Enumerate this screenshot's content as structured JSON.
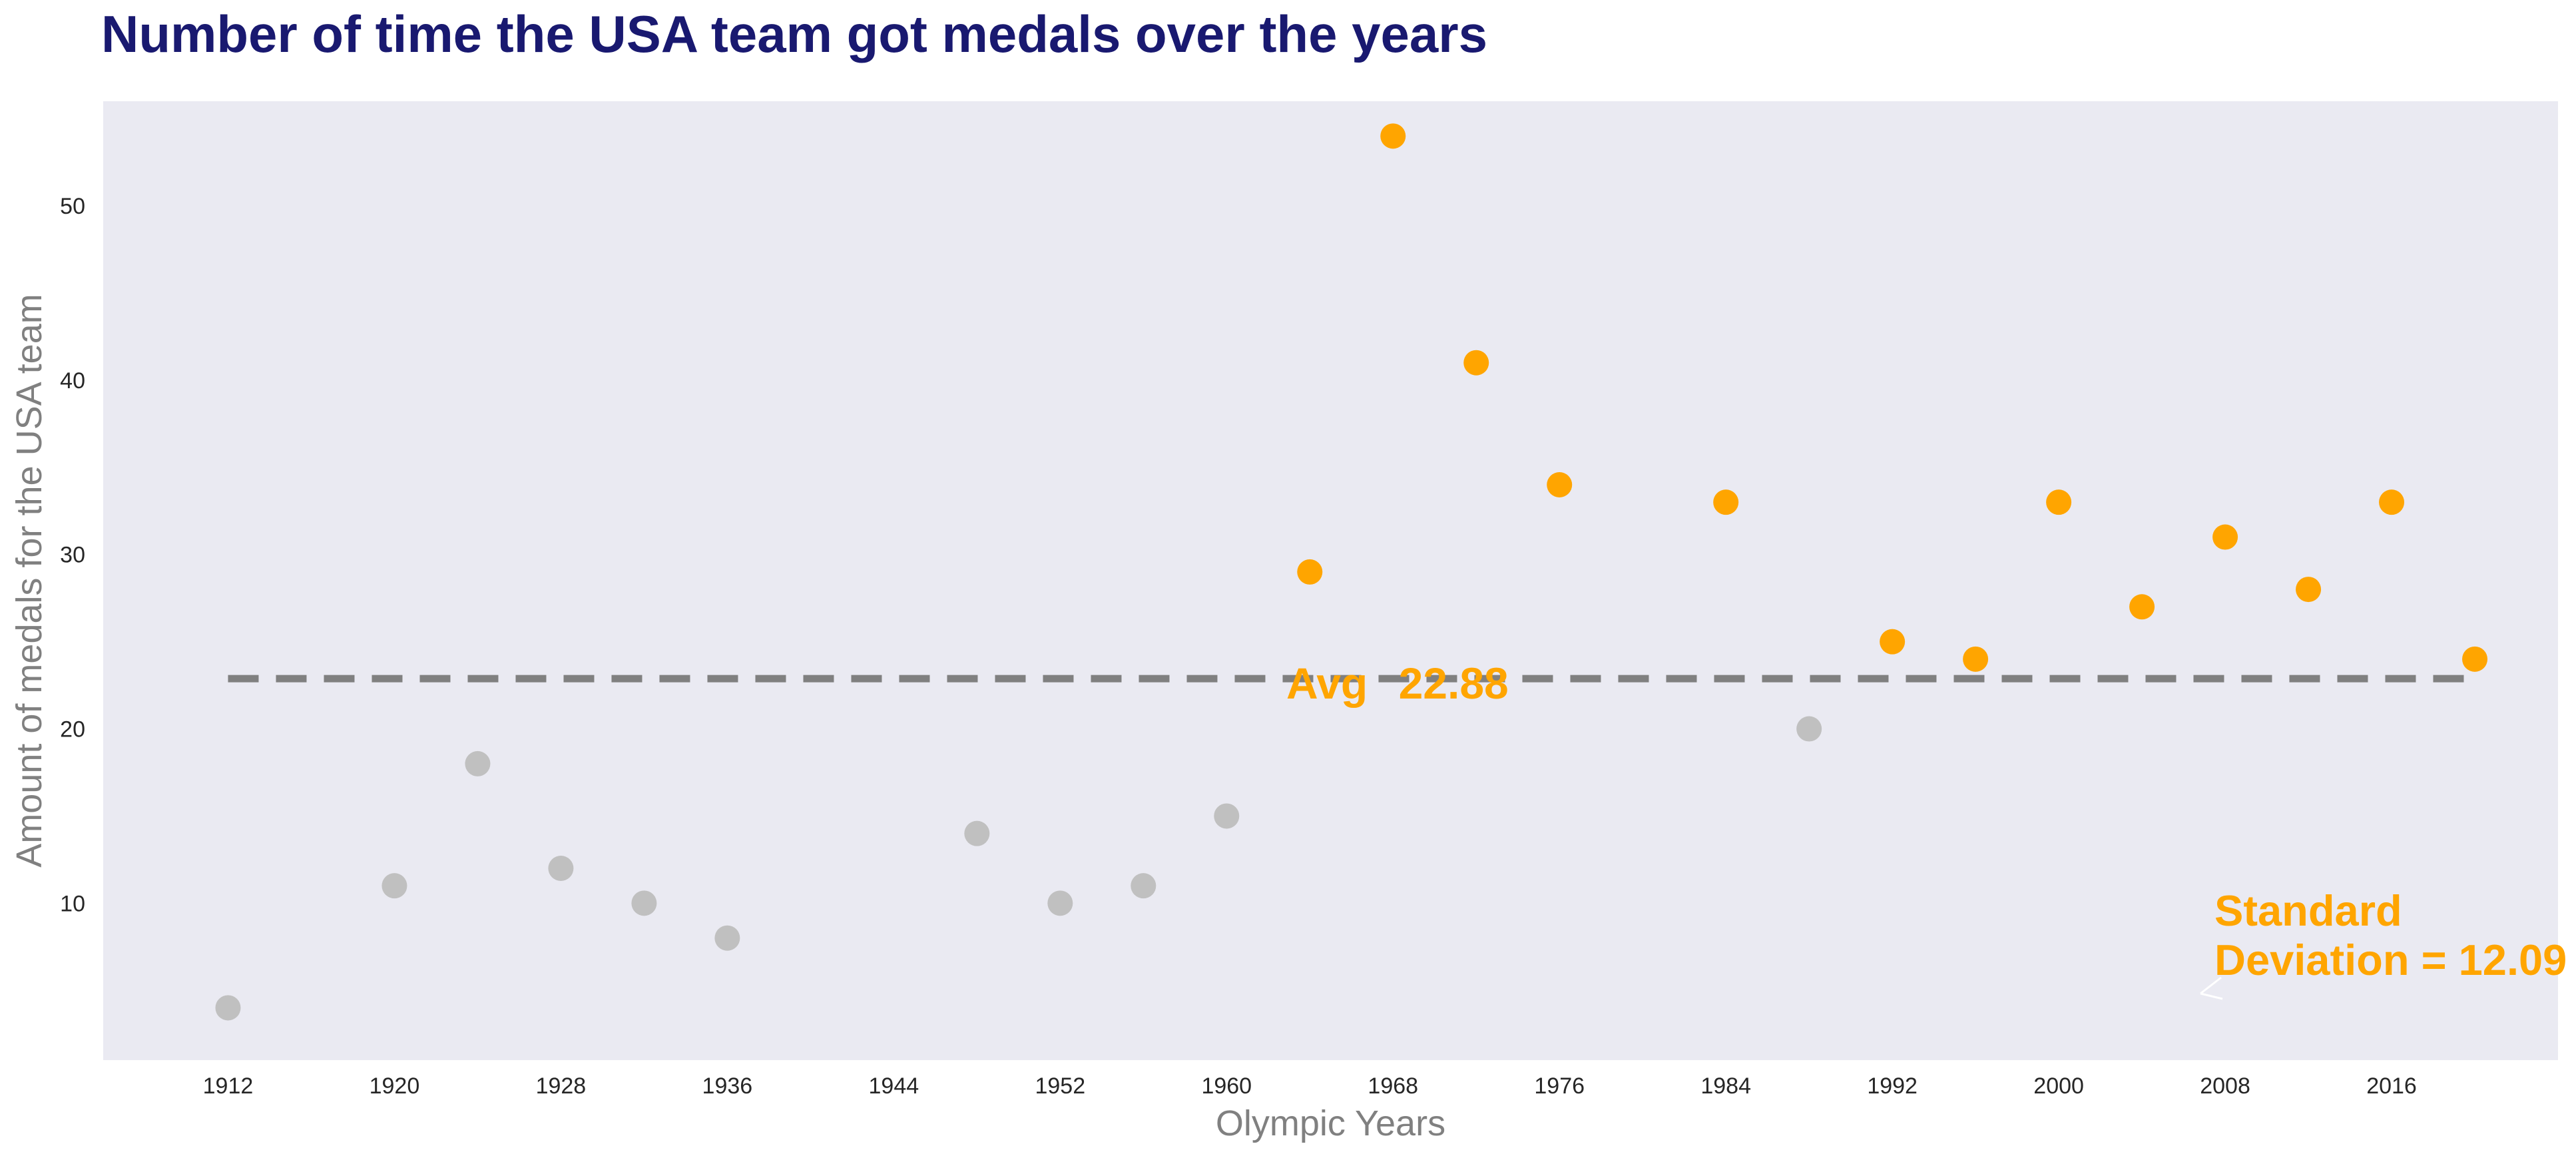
{
  "chart_data": {
    "type": "scatter",
    "title": "Number of time the USA team got medals over the years",
    "xlabel": "Olympic Years",
    "ylabel": "Amount of medals for the USA team",
    "xlim": [
      1906,
      2024
    ],
    "ylim": [
      1,
      56
    ],
    "xticks": [
      1912,
      1920,
      1928,
      1936,
      1944,
      1952,
      1960,
      1968,
      1976,
      1984,
      1992,
      2000,
      2008,
      2016
    ],
    "yticks": [
      10,
      20,
      30,
      40,
      50
    ],
    "grid": false,
    "points": [
      {
        "x": 1912,
        "y": 4
      },
      {
        "x": 1920,
        "y": 11
      },
      {
        "x": 1924,
        "y": 18
      },
      {
        "x": 1928,
        "y": 12
      },
      {
        "x": 1932,
        "y": 10
      },
      {
        "x": 1936,
        "y": 8
      },
      {
        "x": 1948,
        "y": 14
      },
      {
        "x": 1952,
        "y": 10
      },
      {
        "x": 1956,
        "y": 11
      },
      {
        "x": 1960,
        "y": 15
      },
      {
        "x": 1964,
        "y": 29
      },
      {
        "x": 1968,
        "y": 54
      },
      {
        "x": 1972,
        "y": 41
      },
      {
        "x": 1976,
        "y": 34
      },
      {
        "x": 1984,
        "y": 33
      },
      {
        "x": 1988,
        "y": 20
      },
      {
        "x": 1992,
        "y": 25
      },
      {
        "x": 1996,
        "y": 24
      },
      {
        "x": 2000,
        "y": 33
      },
      {
        "x": 2004,
        "y": 27
      },
      {
        "x": 2008,
        "y": 31
      },
      {
        "x": 2012,
        "y": 28
      },
      {
        "x": 2016,
        "y": 33
      },
      {
        "x": 2020,
        "y": 24
      }
    ],
    "average": {
      "value": 22.88,
      "label": "Avg",
      "value_text": "22.88",
      "x_start": 1912,
      "x_end": 2020
    },
    "std_annotation": {
      "line1": "Standard",
      "line2": " Deviation = 12.09"
    },
    "colors": {
      "background": "#eaeaf2",
      "above_average": "#ffa500",
      "below_average": "#c0c0c0",
      "avg_line": "#808080",
      "title": "#191970",
      "axis_label": "#808080",
      "annotation": "#ffa500"
    }
  }
}
